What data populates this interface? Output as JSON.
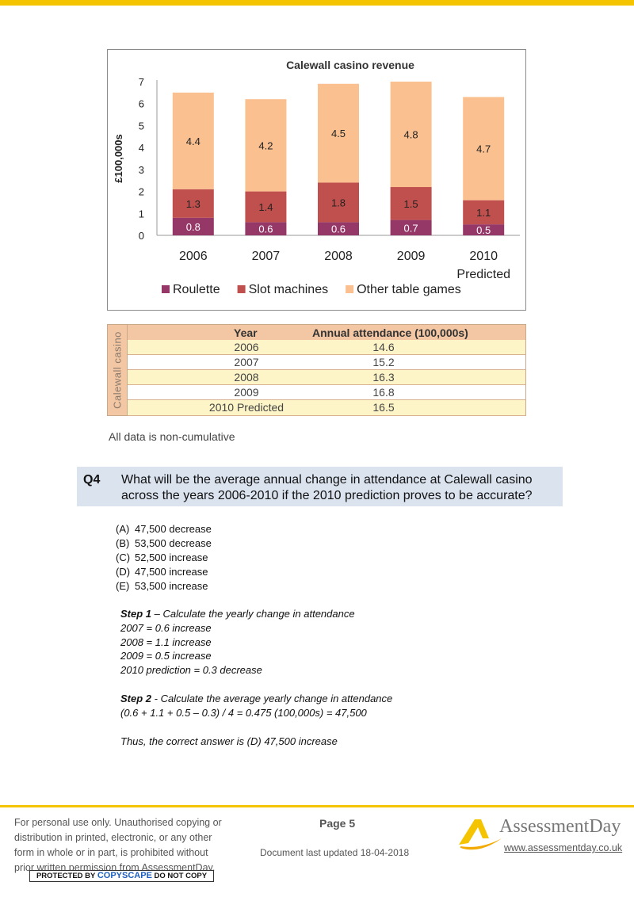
{
  "chart_data": {
    "type": "bar",
    "stacked": true,
    "title": "Calewall casino revenue",
    "ylabel": "£100,000s",
    "xlabel": "",
    "ylim": [
      0,
      7
    ],
    "yticks": [
      "0",
      "1",
      "2",
      "3",
      "4",
      "5",
      "6",
      "7"
    ],
    "categories": [
      {
        "line1": "2006",
        "line2": ""
      },
      {
        "line1": "2007",
        "line2": ""
      },
      {
        "line1": "2008",
        "line2": ""
      },
      {
        "line1": "2009",
        "line2": ""
      },
      {
        "line1": "2010",
        "line2": "Predicted"
      }
    ],
    "series": [
      {
        "name": "Roulette",
        "color": "#953767",
        "label_color": "#ffffff",
        "values": [
          0.8,
          0.6,
          0.6,
          0.7,
          0.5
        ],
        "labels": [
          "0.8",
          "0.6",
          "0.6",
          "0.7",
          "0.5"
        ]
      },
      {
        "name": "Slot machines",
        "color": "#c0504d",
        "label_color": "#222222",
        "values": [
          1.3,
          1.4,
          1.8,
          1.5,
          1.1
        ],
        "labels": [
          "1.3",
          "1.4",
          "1.8",
          "1.5",
          "1.1"
        ]
      },
      {
        "name": "Other table games",
        "color": "#fac090",
        "label_color": "#222222",
        "values": [
          4.4,
          4.2,
          4.5,
          4.8,
          4.7
        ],
        "labels": [
          "4.4",
          "4.2",
          "4.5",
          "4.8",
          "4.7"
        ]
      }
    ],
    "legend": "bottom"
  },
  "attendance_table": {
    "side_label": "Calewall casino",
    "header_year": "Year",
    "header_attendance": "Annual attendance (100,000s)",
    "rows": [
      {
        "year": "2006",
        "value": "14.6"
      },
      {
        "year": "2007",
        "value": "15.2"
      },
      {
        "year": "2008",
        "value": "16.3"
      },
      {
        "year": "2009",
        "value": "16.8"
      },
      {
        "year": "2010 Predicted",
        "value": "16.5"
      }
    ]
  },
  "note": "All data is non-cumulative",
  "question": {
    "number": "Q4",
    "text": "What will be the average annual change in attendance at Calewall casino across the years 2006-2010 if the 2010 prediction proves to be accurate?",
    "options": [
      {
        "letter": "(A)",
        "text": "47,500 decrease"
      },
      {
        "letter": "(B)",
        "text": "53,500 decrease"
      },
      {
        "letter": "(C)",
        "text": "52,500 increase"
      },
      {
        "letter": "(D)",
        "text": "47,500 increase"
      },
      {
        "letter": "(E)",
        "text": "53,500 increase"
      }
    ]
  },
  "solution": {
    "step1_label": "Step 1",
    "step1_text": " – Calculate the yearly change in attendance",
    "step1_lines": [
      "2007 = 0.6 increase",
      "2008 = 1.1 increase",
      "2009 = 0.5 increase",
      "2010 prediction = 0.3 decrease"
    ],
    "step2_label": "Step 2",
    "step2_text": " - Calculate the average yearly change in attendance",
    "step2_calc": "(0.6 + 1.1 + 0.5 – 0.3) / 4 = 0.475 (100,000s) = 47,500",
    "conclusion": "Thus, the correct answer is (D) 47,500 increase"
  },
  "footer": {
    "disclaimer_lines": [
      "For personal use only. Unauthorised copying or",
      "distribution in printed, electronic, or any other",
      "form in whole or in part, is prohibited without",
      "prior written permission from AssessmentDay."
    ],
    "copyscape_pre": "PROTECTED BY ",
    "copyscape_brand": "COPYSCAPE",
    "copyscape_post": " DO NOT COPY",
    "page": "Page 5",
    "updated": "Document last updated 18-04-2018",
    "brand_name": "AssessmentDay",
    "brand_url": "www.assessmentday.co.uk",
    "accent_color": "#f5c400"
  }
}
